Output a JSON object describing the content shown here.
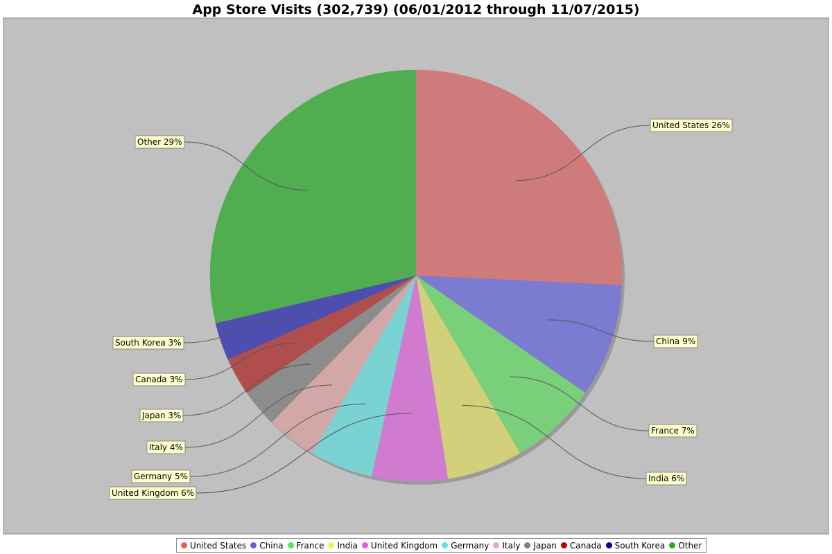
{
  "chart_data": {
    "type": "pie",
    "title": "App Store Visits (302,739) (06/01/2012 through 11/07/2015)",
    "slices": [
      {
        "name": "United States",
        "value": 26,
        "label": "United States 26%",
        "color": "#d07b7b",
        "legend_color": "#e06060"
      },
      {
        "name": "China",
        "value": 9,
        "label": "China 9%",
        "color": "#7b7bd2",
        "legend_color": "#6060e0"
      },
      {
        "name": "France",
        "value": 7,
        "label": "France 7%",
        "color": "#7ad07a",
        "legend_color": "#60e060"
      },
      {
        "name": "India",
        "value": 6,
        "label": "India 6%",
        "color": "#d2d07b",
        "legend_color": "#f0f060"
      },
      {
        "name": "United Kingdom",
        "value": 6,
        "label": "United Kingdom 6%",
        "color": "#d07bd0",
        "legend_color": "#e060e0"
      },
      {
        "name": "Germany",
        "value": 5,
        "label": "Germany 5%",
        "color": "#7bd2d2",
        "legend_color": "#60e0e0"
      },
      {
        "name": "Italy",
        "value": 4,
        "label": "Italy 4%",
        "color": "#d2a7a7",
        "legend_color": "#e8aaaa"
      },
      {
        "name": "Japan",
        "value": 3,
        "label": "Japan 3%",
        "color": "#8c8c8c",
        "legend_color": "#808080"
      },
      {
        "name": "Canada",
        "value": 3,
        "label": "Canada 3%",
        "color": "#b04e4e",
        "legend_color": "#c00000"
      },
      {
        "name": "South Korea",
        "value": 3,
        "label": "South Korea 3%",
        "color": "#4e4eb0",
        "legend_color": "#0000a0"
      },
      {
        "name": "Other",
        "value": 29,
        "label": "Other 29%",
        "color": "#50ae50",
        "legend_color": "#20b020"
      }
    ],
    "start_angle_deg": 0,
    "direction": "clockwise",
    "plot_background": "#c0c0c0",
    "legend_position": "bottom"
  }
}
